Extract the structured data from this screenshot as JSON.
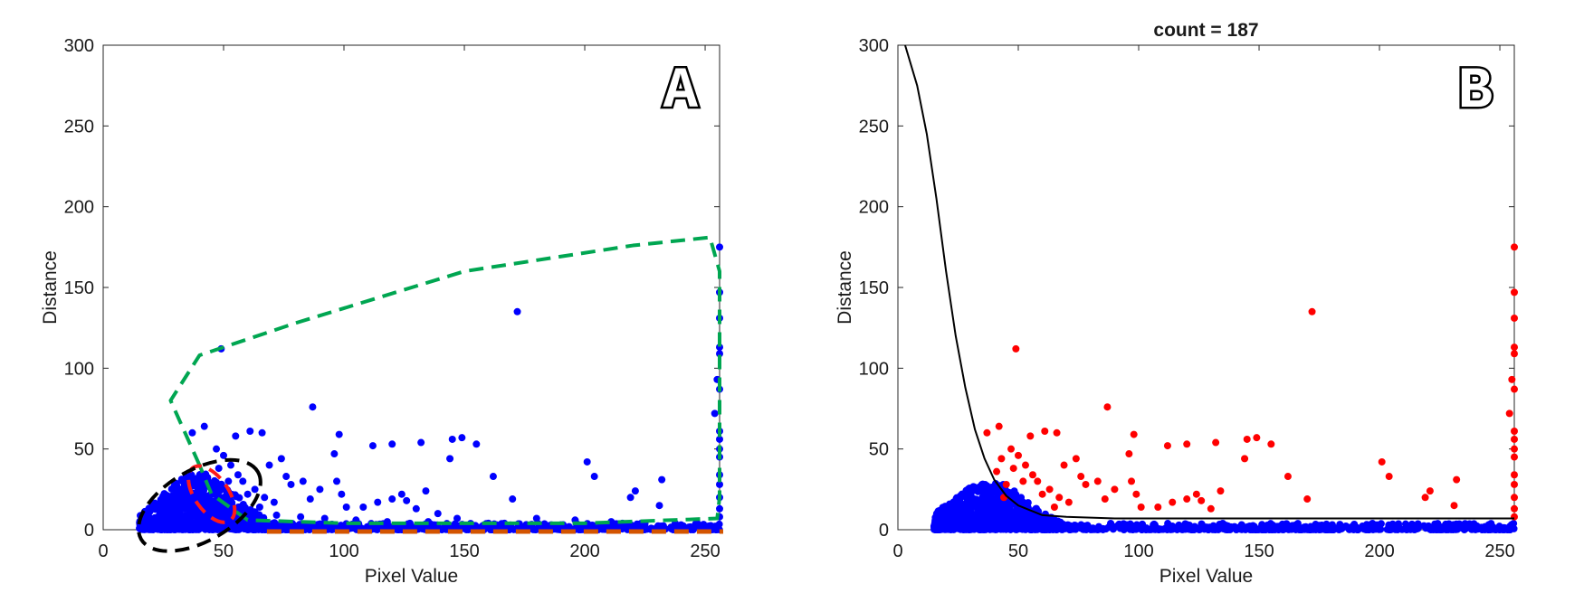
{
  "chart_data": [
    {
      "type": "scatter",
      "panel_label": "A",
      "title": "",
      "xlabel": "Pixel Value",
      "ylabel": "Distance",
      "xlim": [
        0,
        256
      ],
      "ylim": [
        0,
        300
      ],
      "xticks": [
        0,
        50,
        100,
        150,
        200,
        250
      ],
      "yticks": [
        0,
        50,
        100,
        150,
        200,
        250,
        300
      ],
      "grid": false,
      "colors": {
        "points": "#0000ff",
        "green_region": "#00a651",
        "red_region": "#ff1a1a",
        "black_region": "#000000",
        "orange_region": "#d35400"
      },
      "series": [
        {
          "marker": "dot",
          "color": "#0000ff",
          "points": [
            [
              49,
              112
            ],
            [
              172,
              135
            ],
            [
              87,
              76
            ],
            [
              256,
              175
            ],
            [
              256,
              147
            ],
            [
              256,
              131
            ],
            [
              256,
              113
            ],
            [
              256,
              109
            ],
            [
              255,
              93
            ],
            [
              256,
              87
            ],
            [
              254,
              72
            ],
            [
              256,
              61
            ],
            [
              256,
              56
            ],
            [
              256,
              50
            ],
            [
              256,
              45
            ],
            [
              256,
              34
            ],
            [
              256,
              28
            ],
            [
              256,
              20
            ],
            [
              256,
              13
            ],
            [
              256,
              8
            ],
            [
              42,
              64
            ],
            [
              37,
              60
            ],
            [
              61,
              61
            ],
            [
              66,
              60
            ],
            [
              55,
              58
            ],
            [
              98,
              59
            ],
            [
              112,
              52
            ],
            [
              132,
              54
            ],
            [
              145,
              56
            ],
            [
              149,
              57
            ],
            [
              144,
              44
            ],
            [
              155,
              53
            ],
            [
              120,
              53
            ],
            [
              96,
              47
            ],
            [
              201,
              42
            ],
            [
              204,
              33
            ],
            [
              162,
              33
            ],
            [
              221,
              24
            ],
            [
              219,
              20
            ],
            [
              232,
              31
            ],
            [
              231,
              15
            ],
            [
              170,
              19
            ],
            [
              74,
              44
            ],
            [
              69,
              40
            ],
            [
              76,
              33
            ],
            [
              78,
              28
            ],
            [
              83,
              30
            ],
            [
              86,
              19
            ],
            [
              90,
              25
            ],
            [
              97,
              30
            ],
            [
              99,
              22
            ],
            [
              101,
              14
            ],
            [
              108,
              14
            ],
            [
              114,
              17
            ],
            [
              120,
              19
            ],
            [
              124,
              22
            ],
            [
              126,
              18
            ],
            [
              130,
              13
            ],
            [
              134,
              24
            ],
            [
              139,
              10
            ],
            [
              147,
              7
            ],
            [
              180,
              7
            ],
            [
              196,
              6
            ],
            [
              211,
              5
            ],
            [
              225,
              4
            ],
            [
              47,
              50
            ],
            [
              50,
              46
            ],
            [
              53,
              40
            ],
            [
              56,
              34
            ],
            [
              58,
              30
            ],
            [
              63,
              25
            ],
            [
              67,
              20
            ],
            [
              71,
              17
            ],
            [
              48,
              38
            ],
            [
              52,
              30
            ],
            [
              45,
              28
            ],
            [
              60,
              22
            ],
            [
              65,
              14
            ],
            [
              72,
              9
            ],
            [
              82,
              8
            ],
            [
              92,
              7
            ],
            [
              105,
              6
            ],
            [
              118,
              5
            ],
            [
              135,
              5
            ],
            [
              160,
              4
            ],
            [
              190,
              3
            ],
            [
              240,
              3
            ],
            [
              30,
              10
            ],
            [
              35,
              8
            ],
            [
              40,
              6
            ],
            [
              28,
              5
            ],
            [
              45,
              4
            ],
            [
              55,
              3
            ]
          ],
          "dense_cluster": {
            "x_range": [
              15,
              256
            ],
            "y_range": [
              0,
              35
            ],
            "peak_near_x": 40
          }
        }
      ],
      "annotations": [
        {
          "shape": "dashed-boundary",
          "color": "green",
          "points": [
            [
              40,
              40
            ],
            [
              28,
              80
            ],
            [
              40,
              108
            ],
            [
              80,
              128
            ],
            [
              150,
              160
            ],
            [
              220,
              176
            ],
            [
              252,
              181
            ],
            [
              256,
              160
            ],
            [
              256,
              20
            ],
            [
              255,
              7
            ],
            [
              200,
              4
            ],
            [
              100,
              4
            ],
            [
              60,
              6
            ],
            [
              45,
              22
            ],
            [
              40,
              40
            ]
          ]
        },
        {
          "shape": "dashed-ellipse",
          "color": "red",
          "center": [
            45,
            22
          ],
          "semi_axes": [
            7,
            20
          ],
          "rotation_deg": -35
        },
        {
          "shape": "dashed-ellipse",
          "color": "black",
          "center": [
            40,
            15
          ],
          "semi_axes": [
            28,
            22
          ],
          "rotation_deg": -30
        },
        {
          "shape": "dashed-line",
          "color": "orange",
          "from": [
            68,
            0
          ],
          "to": [
            256,
            0
          ]
        }
      ]
    },
    {
      "type": "scatter",
      "panel_label": "B",
      "title": "count = 187",
      "xlabel": "Pixel Value",
      "ylabel": "Distance",
      "xlim": [
        0,
        256
      ],
      "ylim": [
        0,
        300
      ],
      "xticks": [
        0,
        50,
        100,
        150,
        200,
        250
      ],
      "yticks": [
        0,
        50,
        100,
        150,
        200,
        250,
        300
      ],
      "grid": false,
      "curve": {
        "color": "#000000",
        "points": [
          [
            3,
            300
          ],
          [
            8,
            275
          ],
          [
            12,
            245
          ],
          [
            16,
            205
          ],
          [
            20,
            160
          ],
          [
            24,
            120
          ],
          [
            28,
            88
          ],
          [
            32,
            62
          ],
          [
            36,
            44
          ],
          [
            40,
            31
          ],
          [
            45,
            21
          ],
          [
            50,
            15
          ],
          [
            55,
            12
          ],
          [
            60,
            9
          ],
          [
            70,
            8
          ],
          [
            90,
            7
          ],
          [
            150,
            7
          ],
          [
            256,
            7
          ]
        ]
      },
      "series": [
        {
          "name": "",
          "color": "#ff0000",
          "points": [
            [
              49,
              112
            ],
            [
              172,
              135
            ],
            [
              87,
              76
            ],
            [
              256,
              175
            ],
            [
              256,
              147
            ],
            [
              256,
              131
            ],
            [
              256,
              113
            ],
            [
              256,
              109
            ],
            [
              255,
              93
            ],
            [
              256,
              87
            ],
            [
              254,
              72
            ],
            [
              256,
              61
            ],
            [
              256,
              56
            ],
            [
              256,
              50
            ],
            [
              256,
              45
            ],
            [
              256,
              34
            ],
            [
              256,
              28
            ],
            [
              256,
              20
            ],
            [
              256,
              13
            ],
            [
              256,
              8
            ],
            [
              42,
              64
            ],
            [
              37,
              60
            ],
            [
              61,
              61
            ],
            [
              66,
              60
            ],
            [
              55,
              58
            ],
            [
              98,
              59
            ],
            [
              112,
              52
            ],
            [
              132,
              54
            ],
            [
              145,
              56
            ],
            [
              149,
              57
            ],
            [
              144,
              44
            ],
            [
              155,
              53
            ],
            [
              120,
              53
            ],
            [
              96,
              47
            ],
            [
              201,
              42
            ],
            [
              204,
              33
            ],
            [
              162,
              33
            ],
            [
              221,
              24
            ],
            [
              219,
              20
            ],
            [
              232,
              31
            ],
            [
              231,
              15
            ],
            [
              170,
              19
            ],
            [
              74,
              44
            ],
            [
              69,
              40
            ],
            [
              76,
              33
            ],
            [
              78,
              28
            ],
            [
              83,
              30
            ],
            [
              86,
              19
            ],
            [
              90,
              25
            ],
            [
              97,
              30
            ],
            [
              99,
              22
            ],
            [
              101,
              14
            ],
            [
              108,
              14
            ],
            [
              114,
              17
            ],
            [
              120,
              19
            ],
            [
              124,
              22
            ],
            [
              126,
              18
            ],
            [
              130,
              13
            ],
            [
              134,
              24
            ],
            [
              47,
              50
            ],
            [
              50,
              46
            ],
            [
              53,
              40
            ],
            [
              56,
              34
            ],
            [
              58,
              30
            ],
            [
              63,
              25
            ],
            [
              67,
              20
            ],
            [
              71,
              17
            ],
            [
              48,
              38
            ],
            [
              52,
              30
            ],
            [
              45,
              28
            ],
            [
              60,
              22
            ],
            [
              65,
              14
            ],
            [
              44,
              20
            ],
            [
              41,
              36
            ],
            [
              43,
              44
            ]
          ]
        },
        {
          "name": "",
          "color": "#0000ff",
          "dense_cluster": {
            "x_range": [
              15,
              256
            ],
            "y_range": [
              0,
              30
            ],
            "peak_near_x": 38
          }
        }
      ]
    }
  ]
}
